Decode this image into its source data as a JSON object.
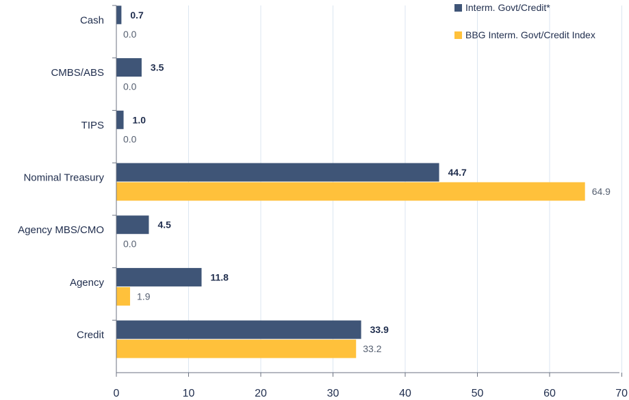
{
  "chart_data": {
    "type": "bar",
    "orientation": "horizontal",
    "categories": [
      "Cash",
      "CMBS/ABS",
      "TIPS",
      "Nominal Treasury",
      "Agency MBS/CMO",
      "Agency",
      "Credit"
    ],
    "series": [
      {
        "name": "Interm. Govt/Credit*",
        "color": "#3f5577",
        "values": [
          0.7,
          3.5,
          1.0,
          44.7,
          4.5,
          11.8,
          33.9
        ],
        "labels": [
          "0.7",
          "3.5",
          "1.0",
          "44.7",
          "4.5",
          "11.8",
          "33.9"
        ]
      },
      {
        "name": "BBG Interm. Govt/Credit Index",
        "color": "#ffc13b",
        "values": [
          0.0,
          0.0,
          0.0,
          64.9,
          0.0,
          1.9,
          33.2
        ],
        "labels": [
          "0.0",
          "0.0",
          "0.0",
          "64.9",
          "0.0",
          "1.9",
          "33.2"
        ]
      }
    ],
    "xlim": [
      0,
      70
    ],
    "xticks": [
      "0",
      "10",
      "20",
      "30",
      "40",
      "50",
      "60",
      "70"
    ],
    "grid": true,
    "legend_position": "top-right",
    "title": "",
    "xlabel": "",
    "ylabel": ""
  }
}
